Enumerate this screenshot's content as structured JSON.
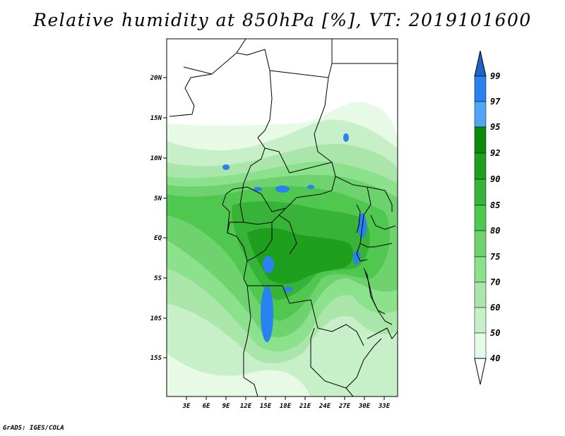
{
  "title": "Relative humidity at 850hPa [%], VT: 2019101600",
  "credit": "GrADS: IGES/COLA",
  "map": {
    "lat_labels": [
      "20N",
      "15N",
      "10N",
      "5N",
      "EQ",
      "5S",
      "10S",
      "15S"
    ],
    "lon_labels": [
      "3E",
      "6E",
      "9E",
      "12E",
      "15E",
      "18E",
      "21E",
      "24E",
      "27E",
      "30E",
      "33E"
    ],
    "lat_range": [
      -20,
      25
    ],
    "lon_range": [
      0,
      35
    ]
  },
  "colorbar": {
    "levels": [
      "99",
      "97",
      "95",
      "92",
      "90",
      "85",
      "80",
      "75",
      "70",
      "60",
      "50",
      "40"
    ],
    "colors": [
      "#1e64c8",
      "#2882f0",
      "#50a5f5",
      "#0a8c0a",
      "#1ea01e",
      "#37b437",
      "#50c850",
      "#6ed26e",
      "#8ce18c",
      "#aae6aa",
      "#c8f0c8",
      "#e6fae6"
    ]
  }
}
